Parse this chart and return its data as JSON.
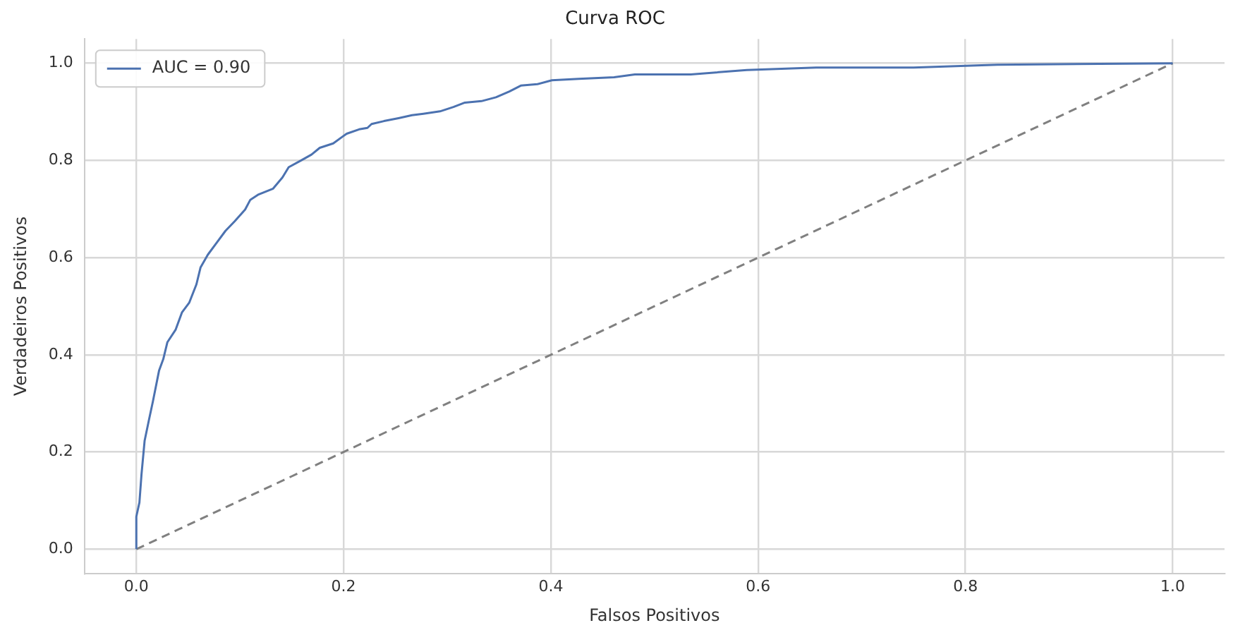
{
  "chart_data": {
    "type": "line",
    "title": "Curva ROC",
    "xlabel": "Falsos Positivos",
    "ylabel": "Verdadeiros Positivos",
    "xlim": [
      -0.05,
      1.05
    ],
    "ylim": [
      -0.05,
      1.05
    ],
    "xticks": [
      {
        "value": 0,
        "label": "0.0"
      },
      0.2,
      0.4,
      0.6,
      0.8,
      {
        "value": 1,
        "label": "1.0"
      }
    ],
    "yticks": [
      {
        "value": 0,
        "label": "0.0"
      },
      0.2,
      0.4,
      0.6,
      0.8,
      {
        "value": 1,
        "label": "1.0"
      }
    ],
    "grid": true,
    "legend": "top left",
    "marker": "none",
    "series": [
      {
        "name": "AUC = 0.90",
        "color": "#4c72b0",
        "line_style": "solid",
        "x": [
          0,
          0,
          0.003,
          0.005,
          0.008,
          0.012,
          0.016,
          0.022,
          0.026,
          0.03,
          0.038,
          0.044,
          0.051,
          0.058,
          0.062,
          0.069,
          0.078,
          0.086,
          0.095,
          0.105,
          0.11,
          0.118,
          0.132,
          0.141,
          0.147,
          0.159,
          0.169,
          0.177,
          0.19,
          0.199,
          0.203,
          0.215,
          0.223,
          0.227,
          0.239,
          0.253,
          0.266,
          0.277,
          0.293,
          0.306,
          0.317,
          0.333,
          0.347,
          0.36,
          0.371,
          0.387,
          0.401,
          0.427,
          0.461,
          0.481,
          0.535,
          0.589,
          0.656,
          0.75,
          0.831,
          1
        ],
        "values": [
          0,
          0.067,
          0.096,
          0.154,
          0.223,
          0.264,
          0.304,
          0.368,
          0.391,
          0.426,
          0.452,
          0.487,
          0.507,
          0.545,
          0.58,
          0.606,
          0.632,
          0.655,
          0.675,
          0.699,
          0.719,
          0.73,
          0.742,
          0.765,
          0.786,
          0.8,
          0.812,
          0.826,
          0.835,
          0.849,
          0.855,
          0.864,
          0.867,
          0.875,
          0.881,
          0.887,
          0.893,
          0.896,
          0.901,
          0.91,
          0.919,
          0.922,
          0.93,
          0.942,
          0.954,
          0.957,
          0.965,
          0.968,
          0.971,
          0.977,
          0.977,
          0.986,
          0.991,
          0.991,
          0.997,
          1
        ]
      },
      {
        "color": "#808080",
        "line_style": "dashed",
        "x": [
          0,
          1
        ],
        "values": [
          0,
          1
        ]
      }
    ]
  }
}
